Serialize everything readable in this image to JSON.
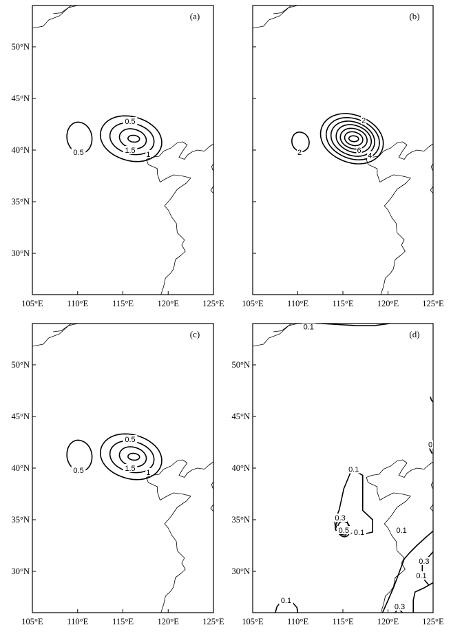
{
  "panels": [
    {
      "id": "a",
      "label": "(a)",
      "show_y_ticks": true,
      "show_x_ticks": true,
      "contours": [
        {
          "type": "ring",
          "cx": 115.9,
          "cy": 41.1,
          "rx": 3.2,
          "ry": 2.3,
          "tilt": -0.1
        },
        {
          "type": "ring",
          "cx": 116.0,
          "cy": 41.1,
          "rx": 2.3,
          "ry": 1.6,
          "tilt": -0.1
        },
        {
          "type": "ring",
          "cx": 116.1,
          "cy": 41.1,
          "rx": 1.4,
          "ry": 1.0,
          "tilt": -0.1
        },
        {
          "type": "ring",
          "cx": 116.2,
          "cy": 41.1,
          "rx": 0.6,
          "ry": 0.35,
          "tilt": 0
        },
        {
          "type": "ring",
          "cx": 110.2,
          "cy": 41.2,
          "rx": 1.3,
          "ry": 1.6,
          "tilt": 0
        }
      ],
      "labels": [
        {
          "text": "0.5",
          "lon": 115.8,
          "lat": 42.8
        },
        {
          "text": "1.5",
          "lon": 115.8,
          "lat": 40.0
        },
        {
          "text": "1",
          "lon": 117.8,
          "lat": 39.6
        },
        {
          "text": "0.5",
          "lon": 110.1,
          "lat": 39.8
        }
      ]
    },
    {
      "id": "b",
      "label": "(b)",
      "show_y_ticks": false,
      "show_x_ticks": true,
      "contours": [
        {
          "type": "ring",
          "cx": 116.0,
          "cy": 41.1,
          "rx": 3.3,
          "ry": 2.5,
          "tilt": -0.15
        },
        {
          "type": "ring",
          "cx": 116.1,
          "cy": 41.1,
          "rx": 2.8,
          "ry": 2.1,
          "tilt": -0.15
        },
        {
          "type": "ring",
          "cx": 116.1,
          "cy": 41.1,
          "rx": 2.3,
          "ry": 1.75,
          "tilt": -0.15
        },
        {
          "type": "ring",
          "cx": 116.2,
          "cy": 41.1,
          "rx": 1.85,
          "ry": 1.4,
          "tilt": -0.15
        },
        {
          "type": "ring",
          "cx": 116.2,
          "cy": 41.1,
          "rx": 1.4,
          "ry": 1.05,
          "tilt": -0.1
        },
        {
          "type": "ring",
          "cx": 116.2,
          "cy": 41.1,
          "rx": 0.95,
          "ry": 0.7,
          "tilt": -0.1
        },
        {
          "type": "ring",
          "cx": 116.2,
          "cy": 41.1,
          "rx": 0.5,
          "ry": 0.3,
          "tilt": 0
        },
        {
          "type": "ring",
          "cx": 110.3,
          "cy": 40.8,
          "rx": 0.9,
          "ry": 1.0,
          "tilt": 0
        }
      ],
      "labels": [
        {
          "text": "2",
          "lon": 117.3,
          "lat": 42.9
        },
        {
          "text": "6",
          "lon": 116.8,
          "lat": 40.0
        },
        {
          "text": "4",
          "lon": 118.0,
          "lat": 39.5
        },
        {
          "text": "2",
          "lon": 110.2,
          "lat": 39.8
        }
      ]
    },
    {
      "id": "c",
      "label": "(c)",
      "show_y_ticks": true,
      "show_x_ticks": true,
      "contours": [
        {
          "type": "ring",
          "cx": 115.9,
          "cy": 41.1,
          "rx": 3.2,
          "ry": 2.3,
          "tilt": -0.1
        },
        {
          "type": "ring",
          "cx": 116.0,
          "cy": 41.1,
          "rx": 2.3,
          "ry": 1.6,
          "tilt": -0.1
        },
        {
          "type": "ring",
          "cx": 116.1,
          "cy": 41.1,
          "rx": 1.4,
          "ry": 1.0,
          "tilt": -0.1
        },
        {
          "type": "ring",
          "cx": 116.2,
          "cy": 41.1,
          "rx": 0.6,
          "ry": 0.35,
          "tilt": 0
        },
        {
          "type": "ring",
          "cx": 110.2,
          "cy": 41.2,
          "rx": 1.3,
          "ry": 1.6,
          "tilt": 0
        }
      ],
      "labels": [
        {
          "text": "0.5",
          "lon": 115.8,
          "lat": 42.8
        },
        {
          "text": "1.5",
          "lon": 115.8,
          "lat": 40.0
        },
        {
          "text": "1",
          "lon": 117.8,
          "lat": 39.6
        },
        {
          "text": "0.5",
          "lon": 110.1,
          "lat": 39.8
        }
      ]
    },
    {
      "id": "d",
      "label": "(d)",
      "show_y_ticks": true,
      "show_x_ticks": true,
      "contours": [
        {
          "type": "line",
          "pts": [
            [
              114.1,
              34.8
            ],
            [
              114.6,
              36.0
            ],
            [
              115.1,
              38.0
            ],
            [
              116.0,
              39.9
            ],
            [
              117.2,
              39.3
            ],
            [
              117.2,
              37.6
            ],
            [
              117.2,
              35.9
            ],
            [
              118.3,
              35.0
            ],
            [
              118.3,
              33.8
            ],
            [
              117.2,
              33.6
            ],
            [
              115.9,
              33.7
            ],
            [
              115.0,
              33.8
            ],
            [
              114.2,
              34.0
            ],
            [
              114.1,
              34.8
            ]
          ]
        },
        {
          "type": "ring",
          "cx": 115.1,
          "cy": 34.1,
          "rx": 0.65,
          "ry": 0.8,
          "tilt": 0
        },
        {
          "type": "line",
          "pts": [
            [
              114.2,
              34.5
            ],
            [
              114.6,
              35.2
            ],
            [
              115.4,
              35.0
            ],
            [
              115.7,
              34.2
            ],
            [
              115.3,
              33.5
            ],
            [
              114.6,
              33.6
            ],
            [
              114.2,
              34.5
            ]
          ]
        },
        {
          "type": "line",
          "pts": [
            [
              111.0,
              54.5
            ],
            [
              112.6,
              54.0
            ],
            [
              114.5,
              53.9
            ],
            [
              116.5,
              53.8
            ],
            [
              118.5,
              53.8
            ],
            [
              120.2,
              54.0
            ]
          ]
        },
        {
          "type": "line",
          "pts": [
            [
              124.7,
              46.9
            ],
            [
              124.8,
              46.6
            ],
            [
              125.0,
              46.4
            ]
          ]
        },
        {
          "type": "line",
          "pts": [
            [
              124.9,
              42.4
            ],
            [
              124.6,
              41.9
            ],
            [
              124.9,
              41.4
            ]
          ]
        },
        {
          "type": "line",
          "pts": [
            [
              125.0,
              33.9
            ],
            [
              124.2,
              33.3
            ],
            [
              123.2,
              32.5
            ],
            [
              122.4,
              31.8
            ],
            [
              121.8,
              31.2
            ],
            [
              121.2,
              29.8
            ],
            [
              120.6,
              28.4
            ],
            [
              119.9,
              27.0
            ],
            [
              119.4,
              26.0
            ]
          ]
        },
        {
          "type": "line",
          "pts": [
            [
              125.0,
              31.9
            ],
            [
              124.4,
              31.3
            ],
            [
              123.8,
              30.6
            ],
            [
              123.8,
              29.8
            ],
            [
              124.1,
              29.1
            ],
            [
              124.5,
              28.7
            ]
          ]
        },
        {
          "type": "line",
          "pts": [
            [
              125.0,
              28.9
            ],
            [
              124.0,
              28.4
            ],
            [
              123.0,
              28.0
            ],
            [
              122.8,
              27.2
            ],
            [
              122.8,
              26.0
            ]
          ]
        },
        {
          "type": "line",
          "pts": [
            [
              120.8,
              26.0
            ],
            [
              121.1,
              26.4
            ],
            [
              121.5,
              26.1
            ],
            [
              121.6,
              26.0
            ]
          ]
        },
        {
          "type": "line",
          "pts": [
            [
              107.5,
              26.0
            ],
            [
              107.7,
              26.6
            ],
            [
              108.4,
              27.3
            ],
            [
              109.3,
              27.1
            ],
            [
              109.9,
              26.5
            ],
            [
              110.0,
              26.0
            ]
          ]
        }
      ],
      "labels": [
        {
          "text": "0.1",
          "lon": 111.2,
          "lat": 53.7
        },
        {
          "text": "0.1",
          "lon": 116.2,
          "lat": 39.9
        },
        {
          "text": "0.3",
          "lon": 114.7,
          "lat": 35.2
        },
        {
          "text": "0.5",
          "lon": 115.1,
          "lat": 34.0
        },
        {
          "text": "0.1",
          "lon": 116.8,
          "lat": 33.8
        },
        {
          "text": "0.1",
          "lon": 121.5,
          "lat": 34.0
        },
        {
          "text": "0.3",
          "lon": 124.0,
          "lat": 31.0
        },
        {
          "text": "0.1",
          "lon": 123.7,
          "lat": 29.6
        },
        {
          "text": "0.3",
          "lon": 121.3,
          "lat": 26.6
        },
        {
          "text": "0.1",
          "lon": 108.7,
          "lat": 27.2
        },
        {
          "text": "0",
          "lon": 124.7,
          "lat": 42.3
        }
      ]
    }
  ],
  "axes": {
    "x_ticks": [
      "105°E",
      "110°E",
      "115°E",
      "120°E",
      "125°E"
    ],
    "x_values": [
      105,
      110,
      115,
      120,
      125
    ],
    "y_ticks": [
      "30°N",
      "35°N",
      "40°N",
      "45°N",
      "50°N"
    ],
    "y_values": [
      30,
      35,
      40,
      45,
      50
    ],
    "lon_range": [
      105,
      125
    ],
    "lat_range": [
      26,
      54
    ]
  },
  "coastline": {
    "mainland": [
      [
        119.2,
        26.0
      ],
      [
        119.5,
        26.8
      ],
      [
        119.7,
        27.6
      ],
      [
        120.3,
        28.1
      ],
      [
        120.6,
        28.5
      ],
      [
        120.8,
        29.4
      ],
      [
        121.4,
        29.8
      ],
      [
        121.9,
        30.2
      ],
      [
        121.5,
        30.8
      ],
      [
        121.8,
        31.3
      ],
      [
        121.0,
        32.0
      ],
      [
        120.9,
        32.9
      ],
      [
        120.4,
        33.5
      ],
      [
        120.0,
        34.2
      ],
      [
        119.6,
        34.6
      ],
      [
        120.3,
        35.3
      ],
      [
        121.0,
        36.2
      ],
      [
        122.0,
        36.8
      ],
      [
        122.5,
        37.3
      ],
      [
        121.5,
        37.5
      ],
      [
        120.6,
        37.6
      ],
      [
        119.9,
        37.3
      ],
      [
        119.1,
        36.9
      ],
      [
        118.8,
        37.7
      ],
      [
        118.8,
        38.2
      ],
      [
        117.8,
        38.6
      ],
      [
        117.6,
        39.1
      ],
      [
        118.2,
        39.3
      ],
      [
        119.0,
        39.4
      ],
      [
        119.5,
        39.9
      ],
      [
        120.3,
        40.2
      ],
      [
        121.0,
        40.7
      ],
      [
        121.6,
        40.8
      ],
      [
        122.1,
        40.5
      ],
      [
        121.6,
        39.9
      ],
      [
        121.2,
        39.3
      ],
      [
        121.8,
        39.1
      ],
      [
        122.1,
        39.5
      ],
      [
        122.6,
        39.8
      ],
      [
        123.2,
        40.0
      ],
      [
        124.0,
        39.9
      ],
      [
        124.5,
        40.3
      ],
      [
        125.0,
        40.6
      ]
    ],
    "korea": [
      [
        125.0,
        38.7
      ],
      [
        124.8,
        38.4
      ],
      [
        124.9,
        38.1
      ],
      [
        125.0,
        38.0
      ]
    ],
    "korea2": [
      [
        125.0,
        36.5
      ],
      [
        124.7,
        36.1
      ],
      [
        125.0,
        35.8
      ]
    ],
    "nw_border": [
      [
        105.0,
        51.8
      ],
      [
        106.2,
        52.0
      ],
      [
        106.8,
        52.6
      ],
      [
        108.0,
        53.0
      ],
      [
        109.0,
        53.8
      ],
      [
        110.0,
        54.0
      ]
    ],
    "nw_inner": [
      [
        107.3,
        53.2
      ],
      [
        108.2,
        53.3
      ],
      [
        109.3,
        54.0
      ]
    ]
  }
}
